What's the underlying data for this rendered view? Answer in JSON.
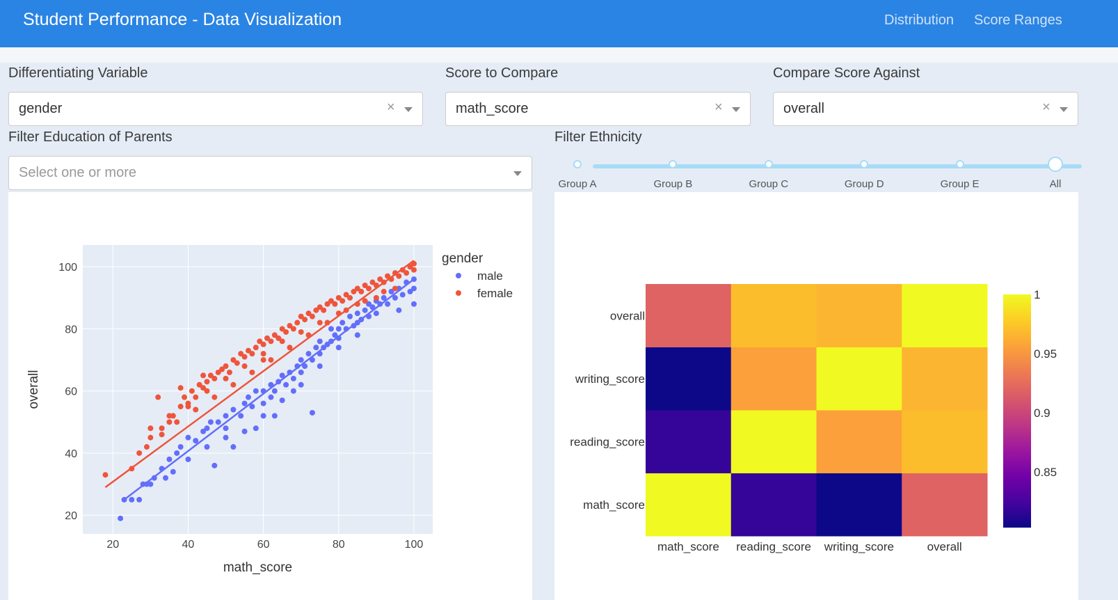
{
  "header": {
    "title": "Student Performance - Data Visualization",
    "nav": [
      {
        "label": "Distribution"
      },
      {
        "label": "Score Ranges"
      }
    ]
  },
  "controls": {
    "diff_var": {
      "label": "Differentiating Variable",
      "value": "gender",
      "clear": "×"
    },
    "score_compare": {
      "label": "Score to Compare",
      "value": "math_score",
      "clear": "×"
    },
    "compare_against": {
      "label": "Compare Score Against",
      "value": "overall",
      "clear": "×"
    },
    "edu_filter": {
      "label": "Filter Education of Parents",
      "placeholder": "Select one or more"
    },
    "ethnicity": {
      "label": "Filter Ethnicity",
      "marks": [
        "Group A",
        "Group B",
        "Group C",
        "Group D",
        "Group E",
        "All"
      ],
      "selected": "All"
    }
  },
  "chart_data": [
    {
      "type": "scatter",
      "xlabel": "math_score",
      "ylabel": "overall",
      "xticks": [
        20,
        40,
        60,
        80,
        100
      ],
      "yticks": [
        20,
        40,
        60,
        80,
        100
      ],
      "xlim": [
        12,
        105
      ],
      "ylim": [
        14,
        107
      ],
      "legend": {
        "title": "gender",
        "placement": "top-right"
      },
      "series": [
        {
          "name": "male",
          "color": "#636efa",
          "trendline": [
            [
              23,
              25
            ],
            [
              100,
              96
            ]
          ],
          "points": [
            [
              22,
              19
            ],
            [
              23,
              25
            ],
            [
              25,
              25
            ],
            [
              27,
              25
            ],
            [
              28,
              30
            ],
            [
              29,
              30
            ],
            [
              30,
              30
            ],
            [
              31,
              32
            ],
            [
              33,
              35
            ],
            [
              35,
              38
            ],
            [
              37,
              40
            ],
            [
              38,
              42
            ],
            [
              40,
              45
            ],
            [
              42,
              44
            ],
            [
              44,
              47
            ],
            [
              45,
              48
            ],
            [
              46,
              50
            ],
            [
              48,
              50
            ],
            [
              50,
              52
            ],
            [
              50,
              48
            ],
            [
              52,
              54
            ],
            [
              54,
              52
            ],
            [
              55,
              56
            ],
            [
              56,
              58
            ],
            [
              57,
              55
            ],
            [
              58,
              60
            ],
            [
              60,
              60
            ],
            [
              60,
              56
            ],
            [
              62,
              62
            ],
            [
              62,
              58
            ],
            [
              63,
              60
            ],
            [
              64,
              63
            ],
            [
              65,
              65
            ],
            [
              66,
              62
            ],
            [
              67,
              66
            ],
            [
              68,
              64
            ],
            [
              69,
              68
            ],
            [
              70,
              66
            ],
            [
              70,
              70
            ],
            [
              71,
              68
            ],
            [
              72,
              72
            ],
            [
              73,
              70
            ],
            [
              74,
              74
            ],
            [
              75,
              72
            ],
            [
              75,
              76
            ],
            [
              76,
              74
            ],
            [
              77,
              75
            ],
            [
              78,
              76
            ],
            [
              78,
              80
            ],
            [
              79,
              78
            ],
            [
              80,
              80
            ],
            [
              80,
              77
            ],
            [
              81,
              82
            ],
            [
              82,
              80
            ],
            [
              83,
              84
            ],
            [
              84,
              81
            ],
            [
              85,
              85
            ],
            [
              85,
              82
            ],
            [
              86,
              83
            ],
            [
              87,
              86
            ],
            [
              88,
              84
            ],
            [
              88,
              88
            ],
            [
              89,
              87
            ],
            [
              90,
              89
            ],
            [
              90,
              85
            ],
            [
              91,
              88
            ],
            [
              92,
              90
            ],
            [
              93,
              88
            ],
            [
              94,
              92
            ],
            [
              95,
              90
            ],
            [
              96,
              93
            ],
            [
              97,
              91
            ],
            [
              98,
              95
            ],
            [
              99,
              92
            ],
            [
              100,
              96
            ],
            [
              100,
              88
            ],
            [
              100,
              93
            ],
            [
              96,
              86
            ],
            [
              85,
              78
            ],
            [
              80,
              74
            ],
            [
              75,
              68
            ],
            [
              70,
              62
            ],
            [
              68,
              60
            ],
            [
              65,
              57
            ],
            [
              60,
              52
            ],
            [
              55,
              47
            ],
            [
              50,
              45
            ],
            [
              45,
              42
            ],
            [
              40,
              38
            ],
            [
              36,
              34
            ],
            [
              34,
              32
            ],
            [
              47,
              36
            ],
            [
              52,
              42
            ],
            [
              58,
              48
            ],
            [
              63,
              52
            ],
            [
              73,
              53
            ]
          ]
        },
        {
          "name": "female",
          "color": "#ef553b",
          "trendline": [
            [
              18,
              29
            ],
            [
              100,
              102
            ]
          ],
          "points": [
            [
              18,
              33
            ],
            [
              25,
              35
            ],
            [
              27,
              40
            ],
            [
              29,
              42
            ],
            [
              30,
              45
            ],
            [
              33,
              48
            ],
            [
              35,
              50
            ],
            [
              36,
              52
            ],
            [
              38,
              55
            ],
            [
              39,
              58
            ],
            [
              40,
              55
            ],
            [
              41,
              60
            ],
            [
              42,
              58
            ],
            [
              43,
              62
            ],
            [
              44,
              61
            ],
            [
              45,
              63
            ],
            [
              46,
              65
            ],
            [
              47,
              64
            ],
            [
              48,
              66
            ],
            [
              49,
              67
            ],
            [
              50,
              68
            ],
            [
              51,
              66
            ],
            [
              52,
              70
            ],
            [
              53,
              69
            ],
            [
              54,
              72
            ],
            [
              55,
              71
            ],
            [
              56,
              73
            ],
            [
              57,
              72
            ],
            [
              58,
              74
            ],
            [
              59,
              76
            ],
            [
              60,
              75
            ],
            [
              60,
              70
            ],
            [
              61,
              77
            ],
            [
              62,
              76
            ],
            [
              63,
              78
            ],
            [
              64,
              77
            ],
            [
              65,
              80
            ],
            [
              66,
              79
            ],
            [
              67,
              81
            ],
            [
              68,
              80
            ],
            [
              69,
              82
            ],
            [
              70,
              84
            ],
            [
              71,
              83
            ],
            [
              72,
              85
            ],
            [
              73,
              84
            ],
            [
              74,
              86
            ],
            [
              75,
              87
            ],
            [
              76,
              86
            ],
            [
              77,
              88
            ],
            [
              78,
              89
            ],
            [
              79,
              88
            ],
            [
              80,
              90
            ],
            [
              81,
              89
            ],
            [
              82,
              91
            ],
            [
              83,
              90
            ],
            [
              84,
              92
            ],
            [
              85,
              93
            ],
            [
              86,
              92
            ],
            [
              87,
              94
            ],
            [
              88,
              93
            ],
            [
              89,
              95
            ],
            [
              90,
              94
            ],
            [
              91,
              96
            ],
            [
              92,
              95
            ],
            [
              93,
              97
            ],
            [
              94,
              96
            ],
            [
              95,
              98
            ],
            [
              96,
              97
            ],
            [
              97,
              99
            ],
            [
              98,
              98
            ],
            [
              99,
              100
            ],
            [
              100,
              99
            ],
            [
              100,
              101
            ],
            [
              95,
              93
            ],
            [
              90,
              90
            ],
            [
              85,
              88
            ],
            [
              80,
              85
            ],
            [
              75,
              82
            ],
            [
              70,
              79
            ],
            [
              65,
              76
            ],
            [
              60,
              72
            ],
            [
              55,
              68
            ],
            [
              50,
              64
            ],
            [
              45,
              60
            ],
            [
              40,
              56
            ],
            [
              35,
              52
            ],
            [
              30,
              48
            ],
            [
              33,
              46
            ],
            [
              37,
              50
            ],
            [
              42,
              54
            ],
            [
              47,
              58
            ],
            [
              52,
              62
            ],
            [
              57,
              66
            ],
            [
              62,
              70
            ],
            [
              67,
              74
            ],
            [
              72,
              78
            ],
            [
              77,
              82
            ],
            [
              82,
              86
            ],
            [
              87,
              89
            ],
            [
              92,
              92
            ],
            [
              32,
              58
            ],
            [
              38,
              61
            ],
            [
              44,
              65
            ]
          ]
        }
      ]
    },
    {
      "type": "heatmap",
      "x": [
        "math_score",
        "reading_score",
        "writing_score",
        "overall"
      ],
      "y": [
        "math_score",
        "reading_score",
        "writing_score",
        "overall"
      ],
      "z": [
        [
          1,
          0.818,
          0.803,
          0.919
        ],
        [
          0.818,
          1,
          0.955,
          0.97
        ],
        [
          0.803,
          0.955,
          1,
          0.966
        ],
        [
          0.919,
          0.97,
          0.966,
          1
        ]
      ],
      "colorscale": "plasma",
      "colorbar": {
        "ticks": [
          0.85,
          0.9,
          0.95,
          1
        ],
        "tick_labels": [
          "0.85",
          "0.9",
          "0.95",
          "1"
        ],
        "min": 0.803,
        "max": 1
      }
    }
  ]
}
